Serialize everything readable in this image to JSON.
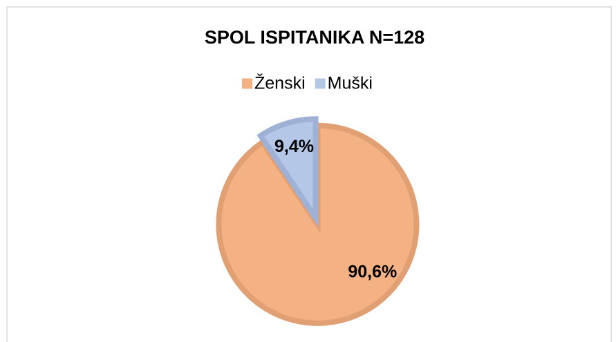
{
  "chart_data": {
    "type": "pie",
    "title": "SPOL ISPITANIKA N=128",
    "categories": [
      "Ženski",
      "Muški"
    ],
    "values": [
      90.6,
      9.4
    ],
    "value_labels": [
      "90,6%",
      "9,4%"
    ],
    "colors": [
      "#f4b183",
      "#b4c7e7"
    ],
    "edge_colors": [
      "#e0a073",
      "#9fb2d6"
    ],
    "legend": "top"
  }
}
